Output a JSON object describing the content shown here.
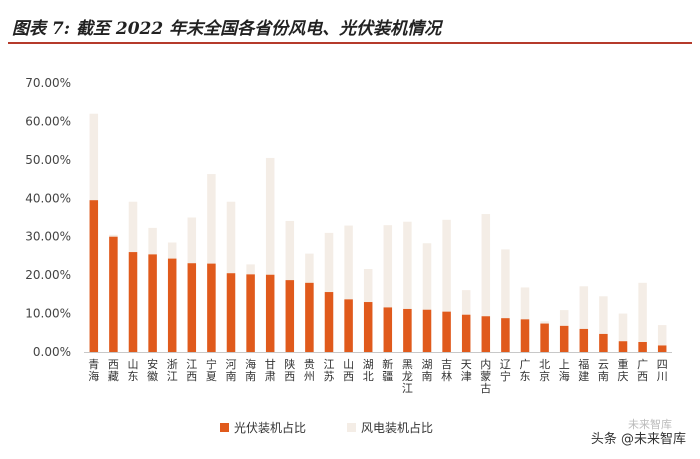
{
  "header": {
    "title": "图表 7: 截至 2022 年末全国各省份风电、光伏装机情况"
  },
  "watermark": {
    "primary": "头条 @未来智库",
    "secondary": "未来智库"
  },
  "chart_data": {
    "type": "bar",
    "stacked": false,
    "ylim": [
      0,
      70
    ],
    "yticks": [
      "0.00%",
      "10.00%",
      "20.00%",
      "30.00%",
      "40.00%",
      "50.00%",
      "60.00%",
      "70.00%"
    ],
    "categories": [
      "青海",
      "西藏",
      "山东",
      "安徽",
      "浙江",
      "江西",
      "宁夏",
      "河南",
      "海南",
      "甘肃",
      "陕西",
      "贵州",
      "江苏",
      "山西",
      "湖北",
      "新疆",
      "黑龙江",
      "湖南",
      "吉林",
      "天津",
      "内蒙古",
      "辽宁",
      "广东",
      "北京",
      "上海",
      "福建",
      "云南",
      "重庆",
      "广西",
      "四川"
    ],
    "series": [
      {
        "name": "光伏装机占比",
        "color": "#e05a1c",
        "values": [
          39.5,
          30.0,
          26.0,
          25.4,
          24.3,
          23.1,
          23.0,
          20.5,
          20.2,
          20.1,
          18.7,
          18.0,
          15.6,
          13.7,
          13.0,
          11.6,
          11.2,
          11.0,
          10.5,
          9.7,
          9.3,
          8.8,
          8.5,
          7.4,
          6.8,
          6.0,
          4.7,
          2.8,
          2.6,
          1.7
        ]
      },
      {
        "name": "风电装机占比",
        "color": "#f4ede6",
        "values": [
          62.0,
          30.5,
          39.1,
          32.3,
          28.5,
          35.0,
          46.3,
          39.1,
          22.8,
          50.5,
          34.1,
          25.6,
          31.0,
          32.9,
          21.6,
          33.0,
          33.9,
          28.3,
          34.4,
          16.1,
          35.9,
          26.7,
          16.8,
          8.0,
          10.9,
          17.1,
          14.5,
          10.0,
          18.0,
          7.0
        ]
      }
    ],
    "legend_position": "bottom",
    "grid": false
  }
}
